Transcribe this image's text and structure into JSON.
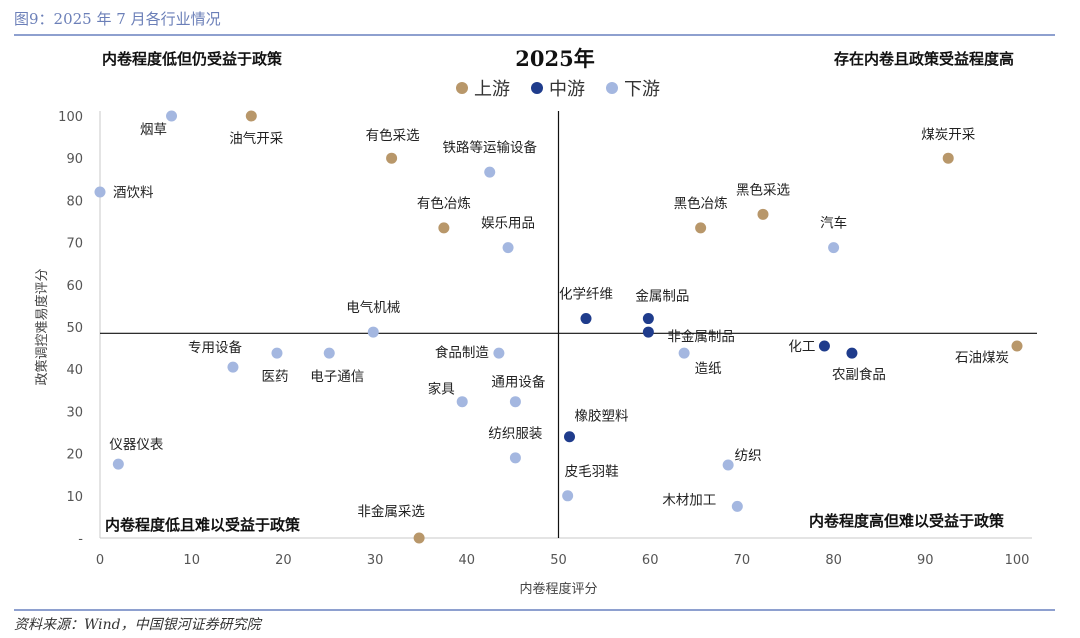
{
  "figure_title": "图9：2025 年 7 月各行业情况",
  "source": "资料来源：Wind，中国银河证券研究院",
  "chart_data": {
    "type": "scatter",
    "title": "2025年",
    "xlabel": "内卷程度评分",
    "ylabel": "政策调控难易度评分",
    "xlim": [
      0,
      100
    ],
    "ylim": [
      0,
      100
    ],
    "xticks": [
      "0",
      "10",
      "20",
      "30",
      "40",
      "50",
      "60",
      "70",
      "80",
      "90",
      "100"
    ],
    "yticks": [
      "-",
      "10",
      "20",
      "30",
      "40",
      "50",
      "60",
      "70",
      "80",
      "90",
      "100"
    ],
    "divider_x": 50,
    "divider_y": 48.5,
    "quadrant_labels": {
      "top_left": "内卷程度低但仍受益于政策",
      "top_right": "存在内卷且政策受益程度高",
      "bottom_left": "内卷程度低且难以受益于政策",
      "bottom_right": "内卷程度高但难以受益于政策"
    },
    "legend": [
      {
        "name": "上游",
        "color": "#b8976a"
      },
      {
        "name": "中游",
        "color": "#1f3c8c"
      },
      {
        "name": "下游",
        "color": "#a4b7e0"
      }
    ],
    "series": [
      {
        "name": "上游",
        "color": "#b8976a",
        "points": [
          {
            "label": "油气开采",
            "x": 16.5,
            "y": 100
          },
          {
            "label": "有色采选",
            "x": 31.8,
            "y": 90
          },
          {
            "label": "有色冶炼",
            "x": 37.5,
            "y": 73.5
          },
          {
            "label": "黑色冶炼",
            "x": 65.5,
            "y": 73.5
          },
          {
            "label": "黑色采选",
            "x": 72.3,
            "y": 76.7
          },
          {
            "label": "煤炭开采",
            "x": 92.5,
            "y": 90
          },
          {
            "label": "石油煤炭",
            "x": 100,
            "y": 45.5
          },
          {
            "label": "非金属采选",
            "x": 34.8,
            "y": 0
          }
        ]
      },
      {
        "name": "中游",
        "color": "#1f3c8c",
        "points": [
          {
            "label": "化学纤维",
            "x": 53,
            "y": 52
          },
          {
            "label": "金属制品",
            "x": 59.8,
            "y": 52
          },
          {
            "label": "非金属制品",
            "x": 59.8,
            "y": 48.8
          },
          {
            "label": "化工",
            "x": 79,
            "y": 45.5
          },
          {
            "label": "农副食品",
            "x": 82,
            "y": 43.8
          },
          {
            "label": "橡胶塑料",
            "x": 51.2,
            "y": 24
          }
        ]
      },
      {
        "name": "下游",
        "color": "#a4b7e0",
        "points": [
          {
            "label": "烟草",
            "x": 7.8,
            "y": 100
          },
          {
            "label": "酒饮料",
            "x": 0,
            "y": 82
          },
          {
            "label": "铁路等运输设备",
            "x": 42.5,
            "y": 86.7
          },
          {
            "label": "娱乐用品",
            "x": 44.5,
            "y": 68.8
          },
          {
            "label": "电气机械",
            "x": 29.8,
            "y": 48.8
          },
          {
            "label": "专用设备",
            "x": 14.5,
            "y": 40.5
          },
          {
            "label": "医药",
            "x": 19.3,
            "y": 43.8
          },
          {
            "label": "电子通信",
            "x": 25,
            "y": 43.8
          },
          {
            "label": "食品制造",
            "x": 43.5,
            "y": 43.8
          },
          {
            "label": "家具",
            "x": 39.5,
            "y": 32.3
          },
          {
            "label": "通用设备",
            "x": 45.3,
            "y": 32.3
          },
          {
            "label": "纺织服装",
            "x": 45.3,
            "y": 19
          },
          {
            "label": "皮毛羽鞋",
            "x": 51,
            "y": 10
          },
          {
            "label": "仪器仪表",
            "x": 2,
            "y": 17.5
          },
          {
            "label": "造纸",
            "x": 63.7,
            "y": 43.8
          },
          {
            "label": "汽车",
            "x": 80,
            "y": 68.8
          },
          {
            "label": "纺织",
            "x": 68.5,
            "y": 17.3
          },
          {
            "label": "木材加工",
            "x": 69.5,
            "y": 7.5
          }
        ]
      }
    ]
  }
}
